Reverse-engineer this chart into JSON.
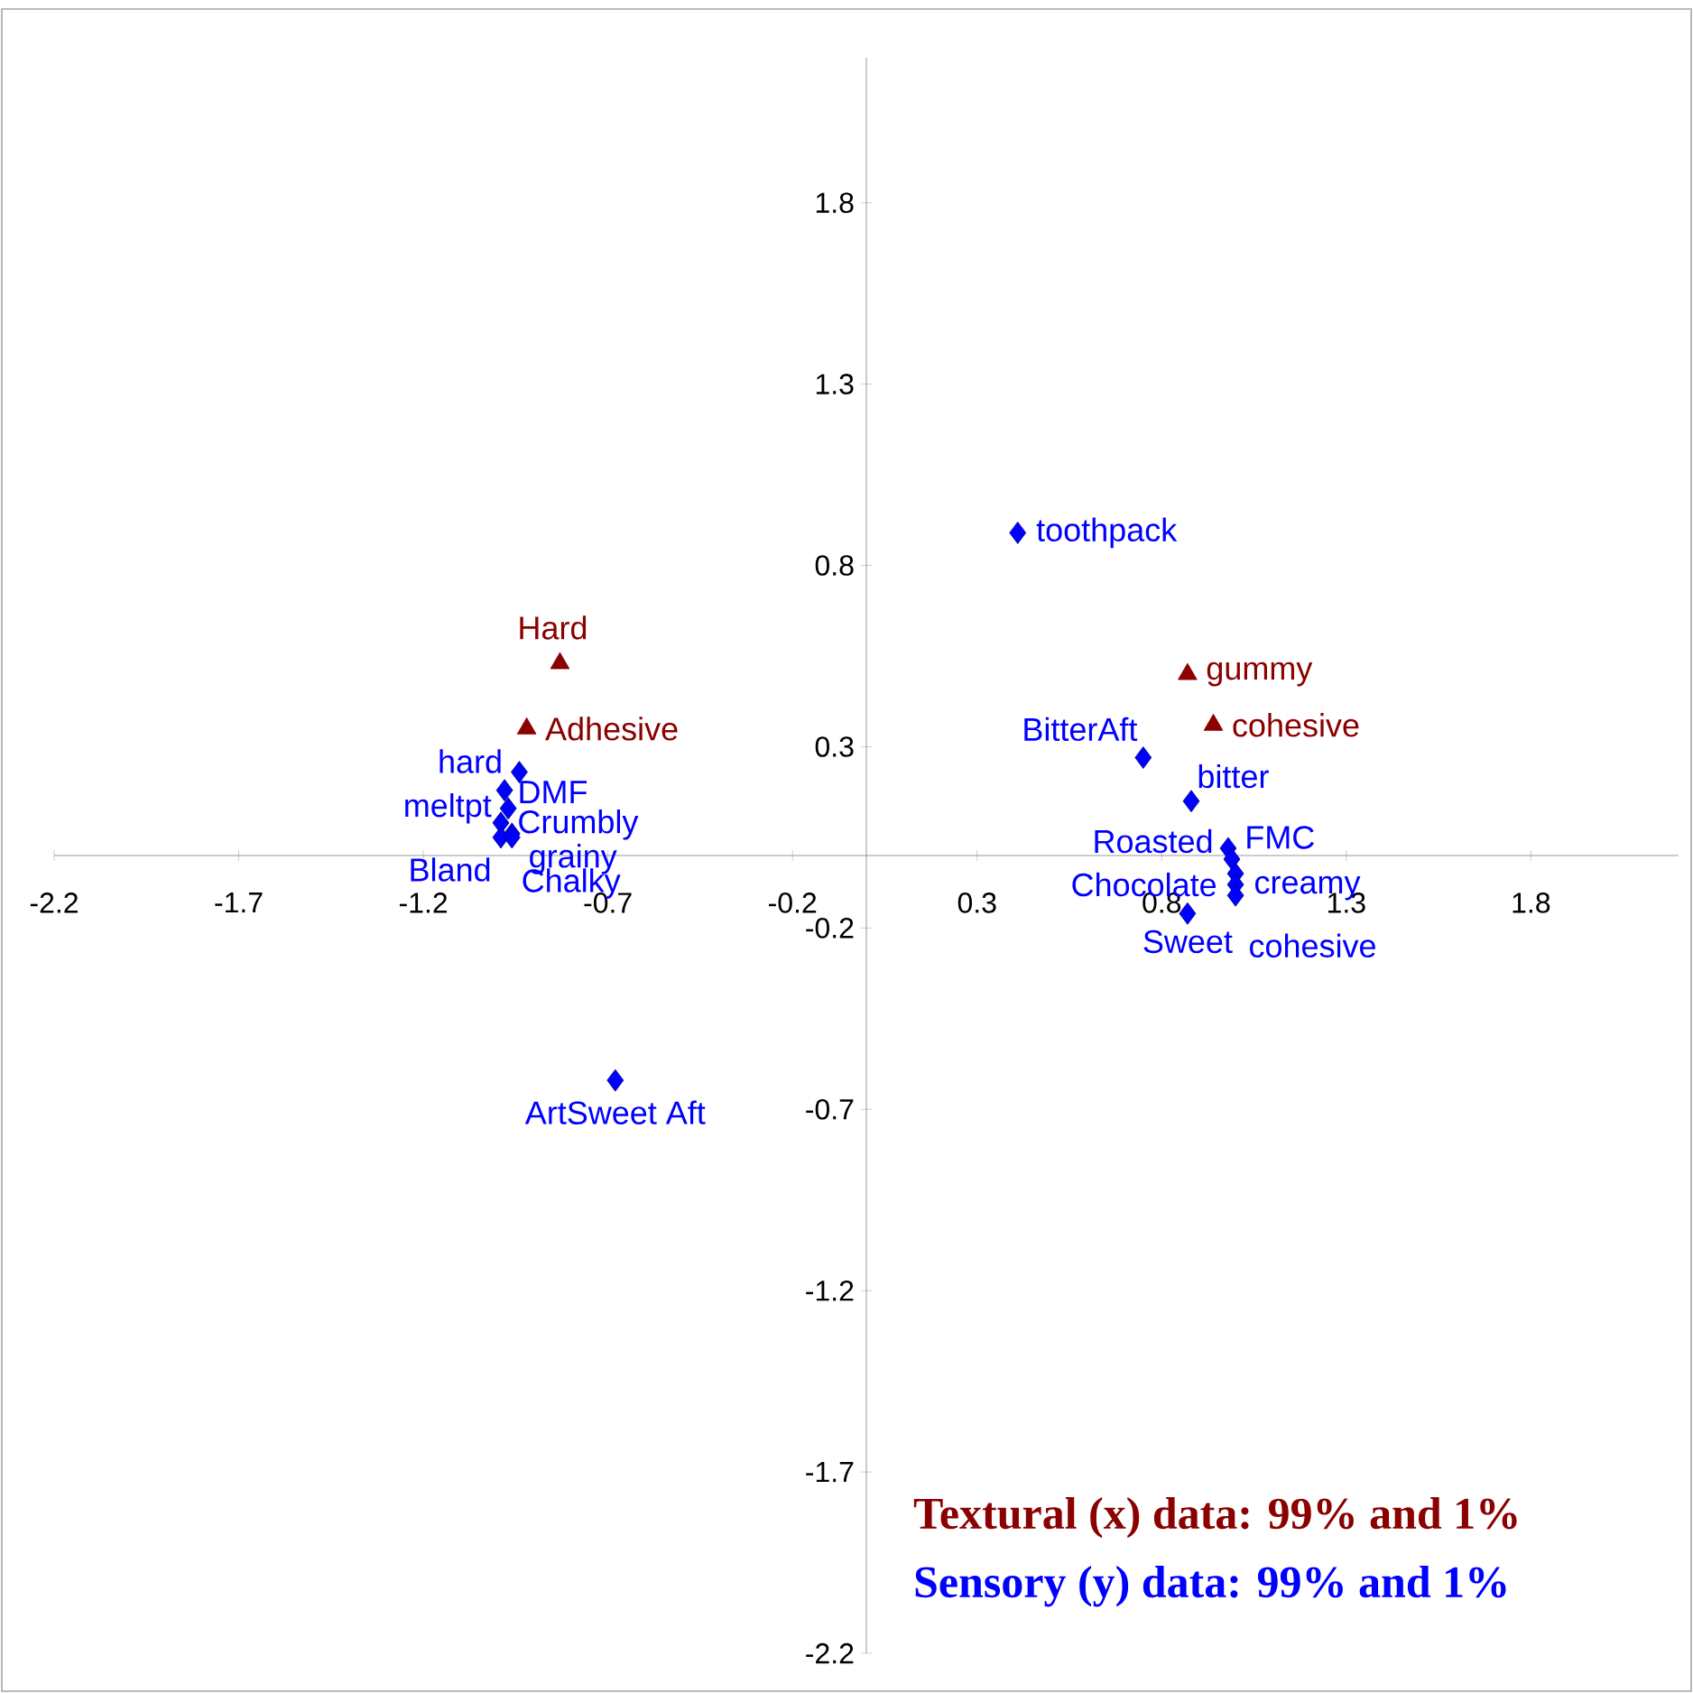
{
  "chart_data": {
    "type": "scatter",
    "xlim": [
      -2.2,
      2.2
    ],
    "ylim": [
      -2.2,
      2.2
    ],
    "xticks": [
      -2.2,
      -1.7,
      -1.2,
      -0.7,
      -0.2,
      0.3,
      0.8,
      1.3,
      1.8
    ],
    "yticks": [
      -2.2,
      -1.7,
      -1.2,
      -0.7,
      -0.2,
      0.3,
      0.8,
      1.3,
      1.8
    ],
    "grid": false,
    "series": [
      {
        "name": "Hard",
        "color": "#8b0000",
        "marker": "triangle",
        "x": [
          -0.83
        ],
        "values": [
          0.53
        ]
      },
      {
        "name": "Adhesive",
        "color": "#8b0000",
        "marker": "triangle",
        "x": [
          -0.92
        ],
        "values": [
          0.35
        ]
      },
      {
        "name": "gummy",
        "color": "#8b0000",
        "marker": "triangle",
        "x": [
          0.87
        ],
        "values": [
          0.5
        ]
      },
      {
        "name": "cohesive",
        "color": "#8b0000",
        "marker": "triangle",
        "x": [
          0.94
        ],
        "values": [
          0.36
        ]
      },
      {
        "name": "toothpack",
        "color": "#0000ff",
        "marker": "diamond",
        "x": [
          0.41
        ],
        "values": [
          0.89
        ]
      },
      {
        "name": "BitterAft",
        "color": "#0000ff",
        "marker": "diamond",
        "x": [
          0.75
        ],
        "values": [
          0.27
        ]
      },
      {
        "name": "bitter",
        "color": "#0000ff",
        "marker": "diamond",
        "x": [
          0.88
        ],
        "values": [
          0.15
        ]
      },
      {
        "name": "FMC",
        "color": "#0000ff",
        "marker": "diamond",
        "x": [
          0.98
        ],
        "values": [
          0.02
        ]
      },
      {
        "name": "Roasted",
        "color": "#0000ff",
        "marker": "diamond",
        "x": [
          0.99
        ],
        "values": [
          -0.01
        ]
      },
      {
        "name": "Chocolate",
        "color": "#0000ff",
        "marker": "diamond",
        "x": [
          1.0
        ],
        "values": [
          -0.05
        ]
      },
      {
        "name": "creamy",
        "color": "#0000ff",
        "marker": "diamond",
        "x": [
          1.0
        ],
        "values": [
          -0.08
        ]
      },
      {
        "name": "cohesive",
        "color": "#0000ff",
        "marker": "diamond",
        "x": [
          1.0
        ],
        "values": [
          -0.11
        ]
      },
      {
        "name": "Sweet",
        "color": "#0000ff",
        "marker": "diamond",
        "x": [
          0.87
        ],
        "values": [
          -0.16
        ]
      },
      {
        "name": "hard",
        "color": "#0000ff",
        "marker": "diamond",
        "x": [
          -0.94
        ],
        "values": [
          0.23
        ]
      },
      {
        "name": "DMF",
        "color": "#0000ff",
        "marker": "diamond",
        "x": [
          -0.98
        ],
        "values": [
          0.18
        ]
      },
      {
        "name": "meltpt",
        "color": "#0000ff",
        "marker": "diamond",
        "x": [
          -0.97
        ],
        "values": [
          0.13
        ]
      },
      {
        "name": "Crumbly",
        "color": "#0000ff",
        "marker": "diamond",
        "x": [
          -0.99
        ],
        "values": [
          0.09
        ]
      },
      {
        "name": "grainy",
        "color": "#0000ff",
        "marker": "diamond",
        "x": [
          -0.96
        ],
        "values": [
          0.06
        ]
      },
      {
        "name": "Bland",
        "color": "#0000ff",
        "marker": "diamond",
        "x": [
          -0.99
        ],
        "values": [
          0.05
        ]
      },
      {
        "name": "Chalky",
        "color": "#0000ff",
        "marker": "diamond",
        "x": [
          -0.96
        ],
        "values": [
          0.05
        ]
      },
      {
        "name": "ArtSweet Aft",
        "color": "#0000ff",
        "marker": "diamond",
        "x": [
          -0.68
        ],
        "values": [
          -0.62
        ]
      }
    ],
    "annotations": [
      "Textural (x) data: 99% and 1%",
      "Sensory (y) data: 99% and 1%"
    ]
  }
}
